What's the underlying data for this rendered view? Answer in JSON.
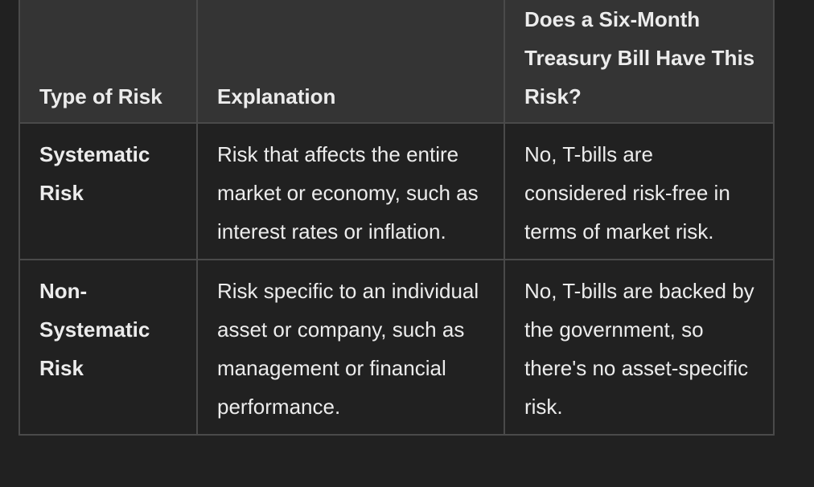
{
  "table": {
    "headers": [
      "Type of Risk",
      "Explanation",
      "Does a Six-Month Treasury Bill Have This Risk?"
    ],
    "rows": [
      {
        "type": "Systematic Risk",
        "explanation": "Risk that affects the entire market or economy, such as interest rates or inflation.",
        "answer": "No, T-bills are considered risk-free in terms of market risk."
      },
      {
        "type": "Non-Systematic Risk",
        "explanation": "Risk specific to an individual asset or company, such as management or financial performance.",
        "answer": "No, T-bills are backed by the government, so there's no asset-specific risk."
      }
    ]
  }
}
